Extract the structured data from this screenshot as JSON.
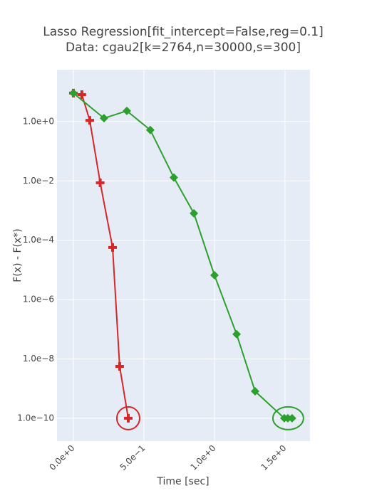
{
  "chart_data": {
    "type": "line",
    "title": "Lasso Regression[fit_intercept=False,reg=0.1]",
    "subtitle": "Data: cgau2[k=2764,n=30000,s=300]",
    "x_label": "Time [sec]",
    "y_label": "F(x) - F(x*)",
    "y_log": true,
    "grid": true,
    "highlight_last": true,
    "xlim": [
      -0.116,
      1.677
    ],
    "ylim": [
      1.7e-11,
      56
    ],
    "xticks": [
      {
        "value": 0,
        "label": "0.0e+0"
      },
      {
        "value": 0.5,
        "label": "5.0e−1"
      },
      {
        "value": 1.0,
        "label": "1.0e+0"
      },
      {
        "value": 1.5,
        "label": "1.5e+0"
      }
    ],
    "yticks": [
      {
        "value": 1,
        "label": "1.0e+0"
      },
      {
        "value": 0.01,
        "label": "1.0e−2"
      },
      {
        "value": 0.0001,
        "label": "1.0e−4"
      },
      {
        "value": 1e-06,
        "label": "1.0e−6"
      },
      {
        "value": 1e-08,
        "label": "1.0e−8"
      },
      {
        "value": 1e-10,
        "label": "1.0e−10"
      }
    ],
    "series": [
      {
        "color": "#d62728",
        "marker": "cross",
        "x": [
          0,
          0.06,
          0.116,
          0.19,
          0.278,
          0.328,
          0.389
        ],
        "values": [
          9.1,
          8.1,
          1.1,
          0.0087,
          5.7e-05,
          5.6e-09,
          1e-10
        ]
      },
      {
        "color": "#2ca02c",
        "marker": "diamond",
        "x": [
          0,
          0.217,
          0.379,
          0.545,
          0.712,
          0.854,
          1.0,
          1.157,
          1.288,
          1.495,
          1.52,
          1.55
        ],
        "values": [
          9.1,
          1.3,
          2.3,
          0.52,
          0.013,
          0.00081,
          6.6e-06,
          6.8e-08,
          8.1e-10,
          1e-10,
          1e-10,
          1e-10
        ]
      }
    ]
  }
}
